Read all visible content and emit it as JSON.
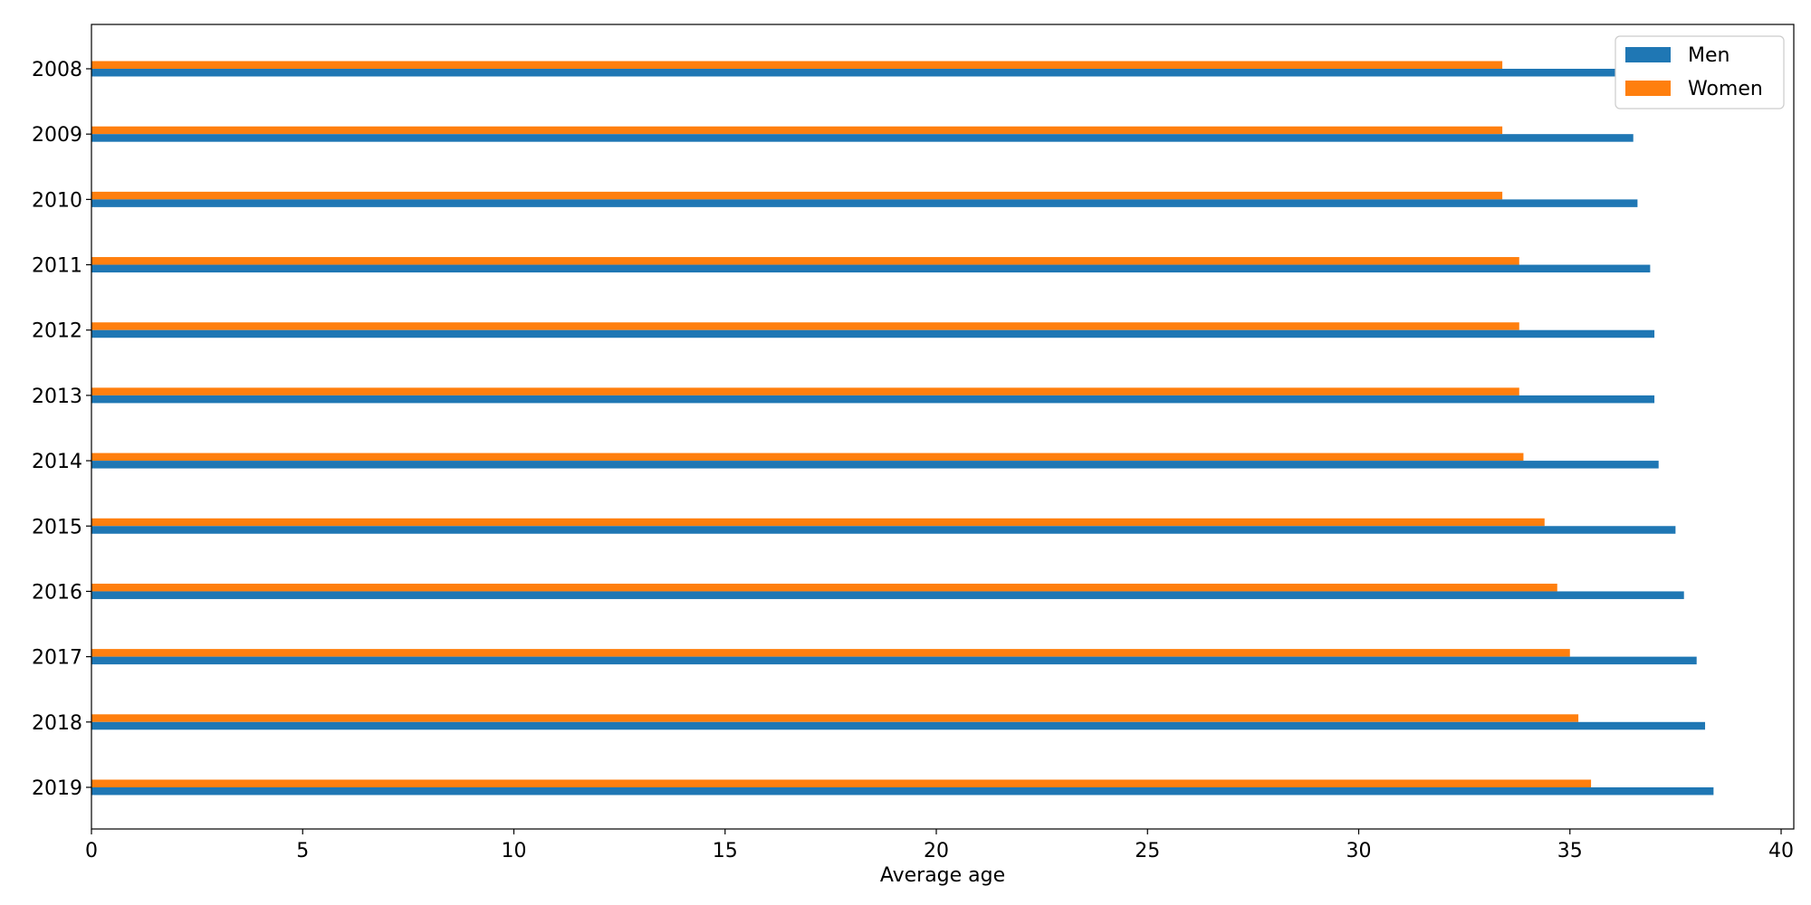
{
  "chart_data": {
    "type": "bar",
    "orientation": "horizontal",
    "categories": [
      "2008",
      "2009",
      "2010",
      "2011",
      "2012",
      "2013",
      "2014",
      "2015",
      "2016",
      "2017",
      "2018",
      "2019"
    ],
    "series": [
      {
        "name": "Men",
        "color": "#1f77b4",
        "values": [
          36.4,
          36.5,
          36.6,
          36.9,
          37.0,
          37.0,
          37.1,
          37.5,
          37.7,
          38.0,
          38.2,
          38.4
        ]
      },
      {
        "name": "Women",
        "color": "#ff7f0e",
        "values": [
          33.4,
          33.4,
          33.4,
          33.8,
          33.8,
          33.8,
          33.9,
          34.4,
          34.7,
          35.0,
          35.2,
          35.5
        ]
      }
    ],
    "xlabel": "Average age",
    "ylabel": "",
    "xlim": [
      0,
      40.3
    ],
    "xticks": [
      0,
      5,
      10,
      15,
      20,
      25,
      30,
      35,
      40
    ],
    "grid": false,
    "legend_position": "top-right"
  }
}
